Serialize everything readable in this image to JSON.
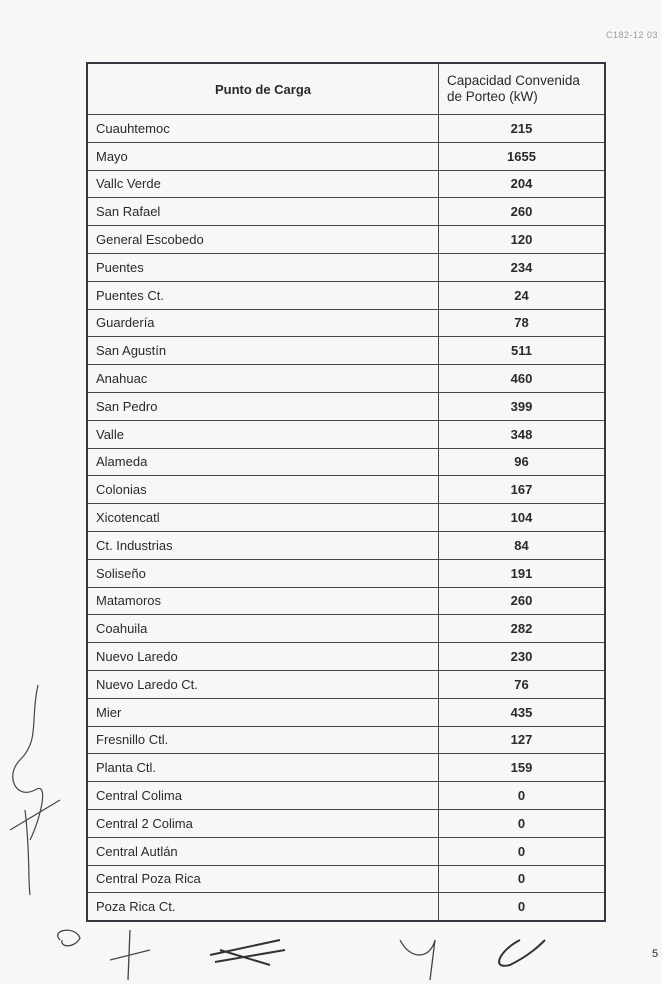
{
  "document_code": "C182-12 03",
  "page_number": "5",
  "table": {
    "headers": [
      "Punto de Carga",
      "Capacidad Convenida de Porteo (kW)"
    ],
    "rows": [
      [
        "Cuauhtemoc",
        "215"
      ],
      [
        "Mayo",
        "1655"
      ],
      [
        "Vallc Verde",
        "204"
      ],
      [
        "San Rafael",
        "260"
      ],
      [
        "General Escobedo",
        "120"
      ],
      [
        "Puentes",
        "234"
      ],
      [
        "Puentes Ct.",
        "24"
      ],
      [
        "Guardería",
        "78"
      ],
      [
        "San Agustín",
        "511"
      ],
      [
        "Anahuac",
        "460"
      ],
      [
        "San Pedro",
        "399"
      ],
      [
        "Valle",
        "348"
      ],
      [
        "Alameda",
        "96"
      ],
      [
        "Colonias",
        "167"
      ],
      [
        "Xicotencatl",
        "104"
      ],
      [
        "Ct. Industrias",
        "84"
      ],
      [
        "Soliseño",
        "191"
      ],
      [
        "Matamoros",
        "260"
      ],
      [
        "Coahuila",
        "282"
      ],
      [
        "Nuevo Laredo",
        "230"
      ],
      [
        "Nuevo Laredo Ct.",
        "76"
      ],
      [
        "Mier",
        "435"
      ],
      [
        "Fresnillo Ctl.",
        "127"
      ],
      [
        "Planta Ctl.",
        "159"
      ],
      [
        "Central Colima",
        "0"
      ],
      [
        "Central 2 Colima",
        "0"
      ],
      [
        "Central Autlán",
        "0"
      ],
      [
        "Central Poza Rica",
        "0"
      ],
      [
        "Poza Rica Ct.",
        "0"
      ]
    ]
  }
}
